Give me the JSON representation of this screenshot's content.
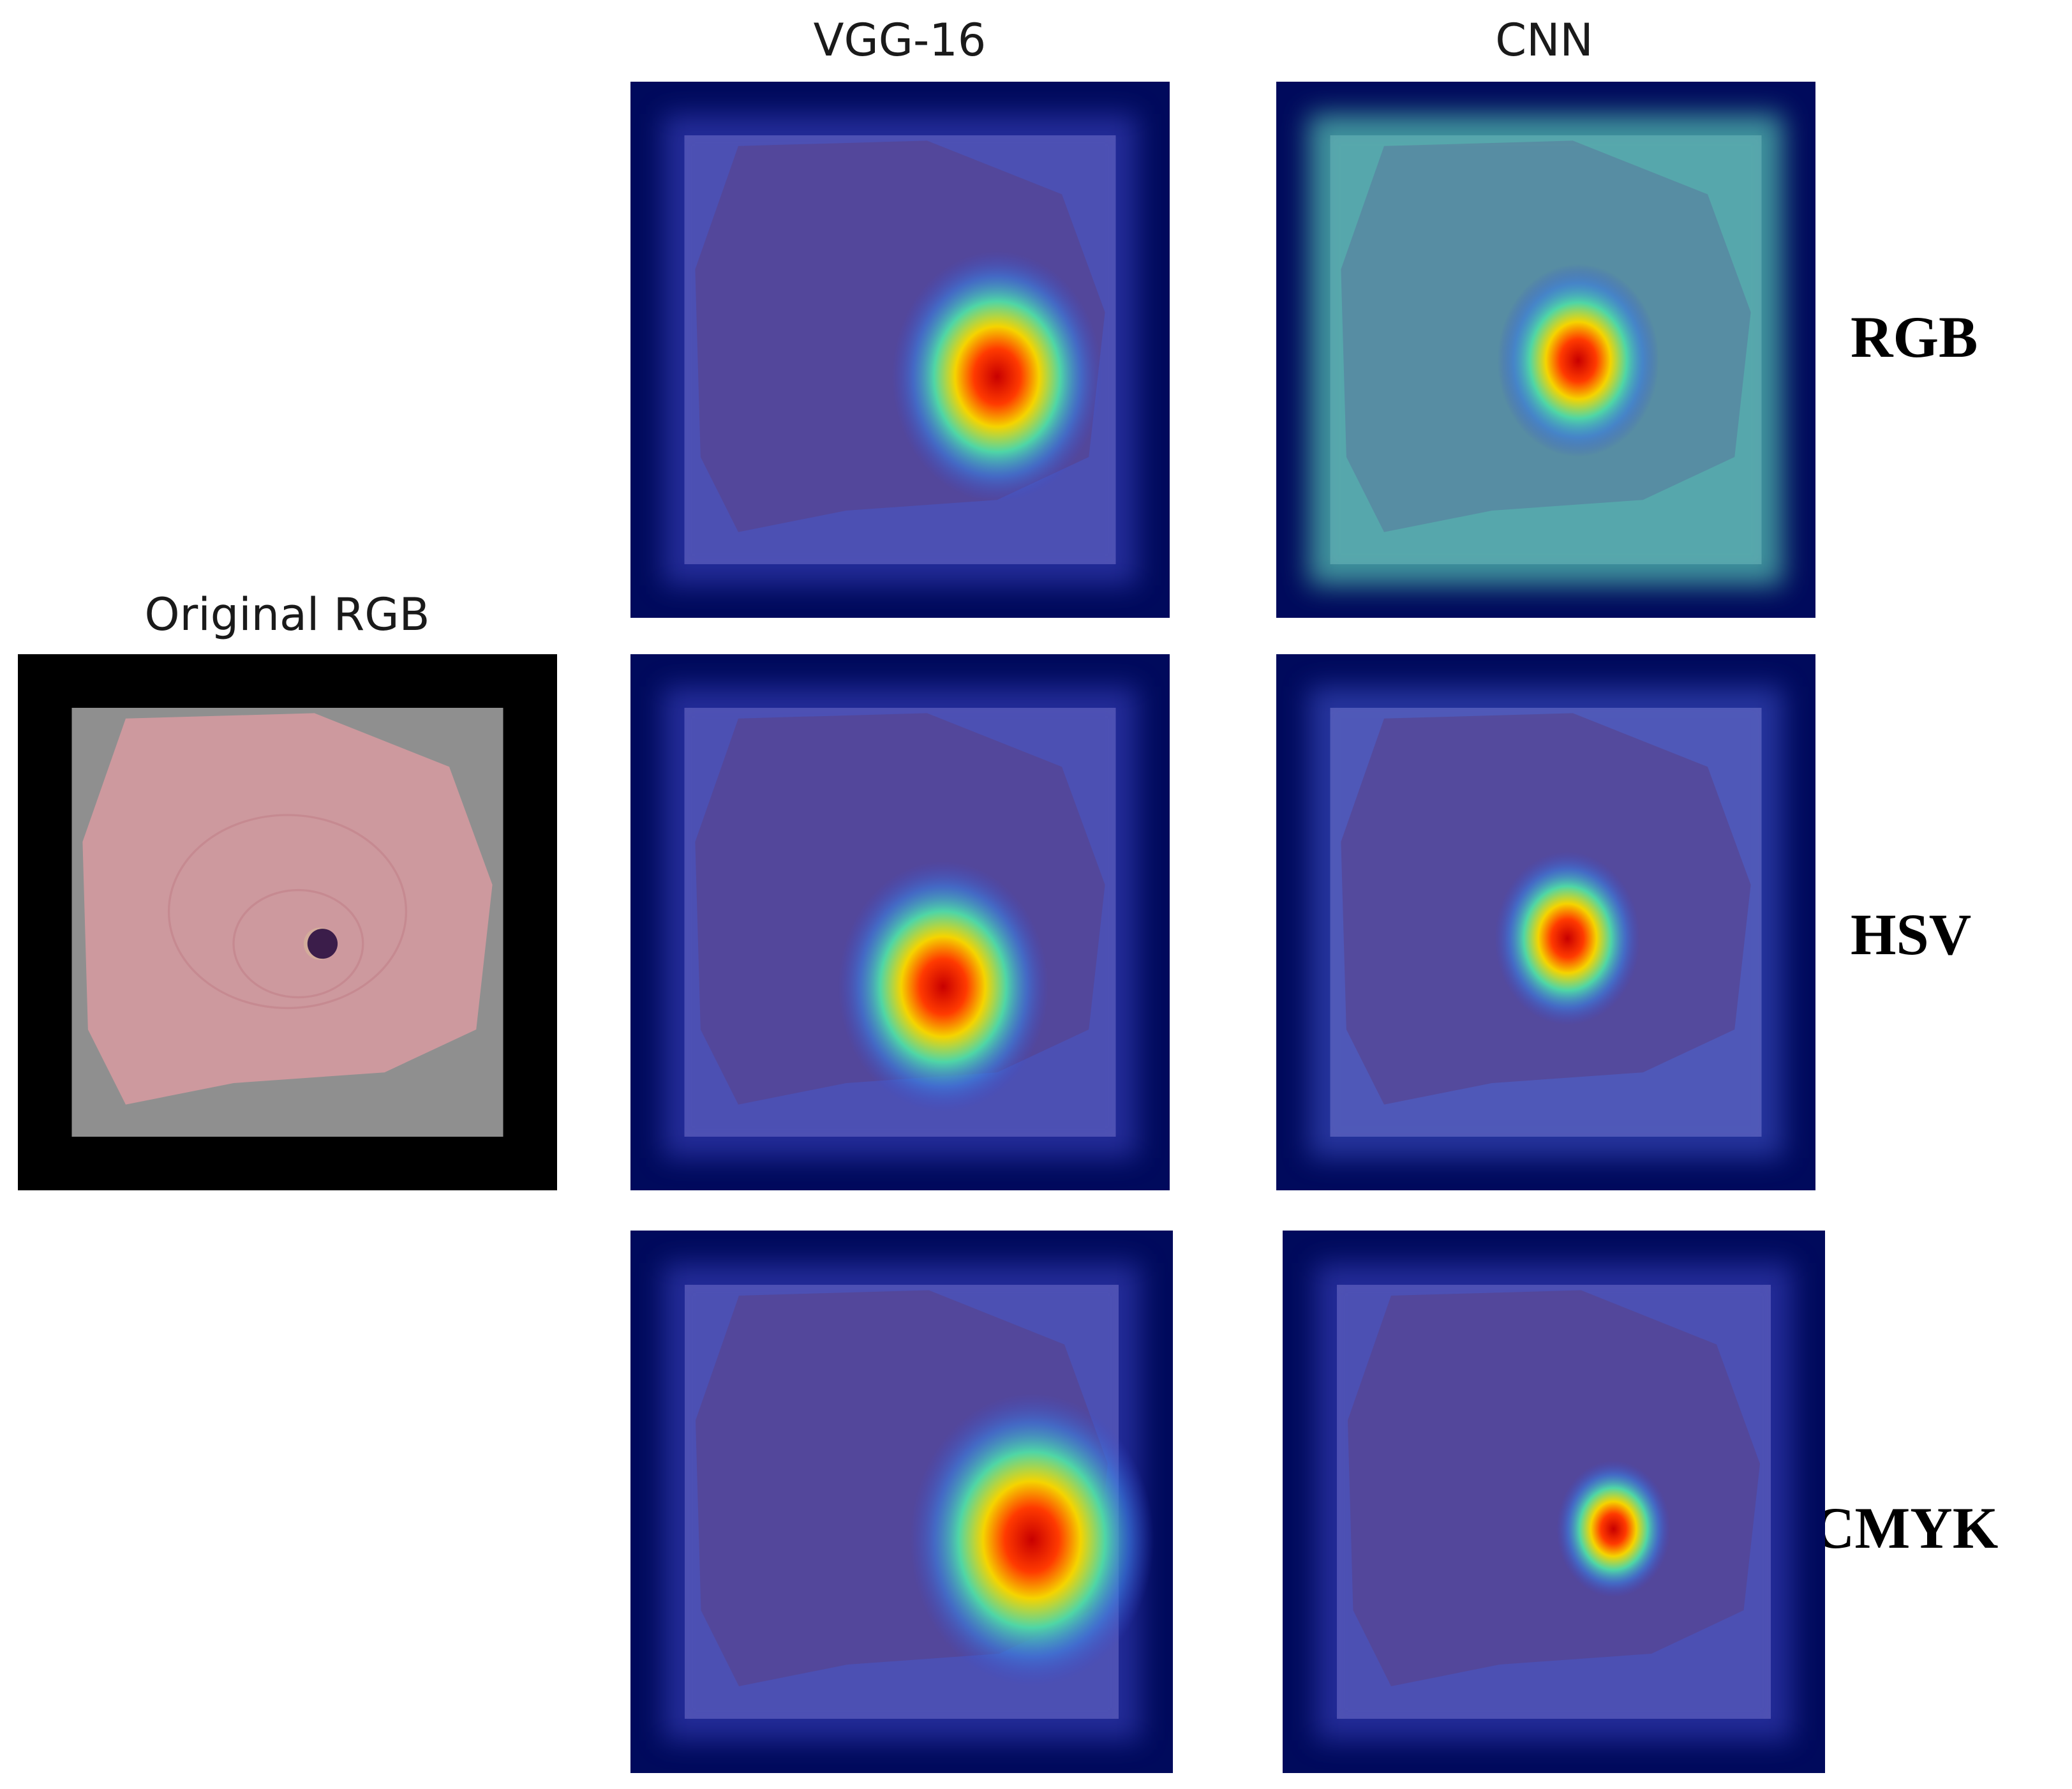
{
  "labels": {
    "original": "Original RGB",
    "vgg": "VGG-16",
    "cnn": "CNN",
    "rgb": "RGB",
    "hsv": "HSV",
    "cmyk": "CMYK"
  },
  "panels": [
    {
      "id": "original-rgb",
      "kind": "original"
    },
    {
      "id": "vgg16-rgb",
      "kind": "heatmap",
      "model": "VGG-16",
      "colorspace": "RGB",
      "hotspot": [
        0.68,
        0.55
      ],
      "extent": 0.26,
      "background": "low"
    },
    {
      "id": "cnn-rgb",
      "kind": "heatmap",
      "model": "CNN",
      "colorspace": "RGB",
      "hotspot": [
        0.56,
        0.52
      ],
      "extent": 0.2,
      "background": "high"
    },
    {
      "id": "vgg16-hsv",
      "kind": "heatmap",
      "model": "VGG-16",
      "colorspace": "HSV",
      "hotspot": [
        0.58,
        0.62
      ],
      "extent": 0.26,
      "background": "low"
    },
    {
      "id": "cnn-hsv",
      "kind": "heatmap",
      "model": "CNN",
      "colorspace": "HSV",
      "hotspot": [
        0.54,
        0.53
      ],
      "extent": 0.18,
      "background": "medium"
    },
    {
      "id": "vgg16-cmyk",
      "kind": "heatmap",
      "model": "VGG-16",
      "colorspace": "CMYK",
      "hotspot": [
        0.74,
        0.57
      ],
      "extent": 0.3,
      "background": "low"
    },
    {
      "id": "cnn-cmyk",
      "kind": "heatmap",
      "model": "CNN",
      "colorspace": "CMYK",
      "hotspot": [
        0.61,
        0.55
      ],
      "extent": 0.14,
      "background": "low"
    }
  ],
  "colors": {
    "frame_dark": "#000a5c",
    "cell_pink": "#d49aa0",
    "nucleus": "#3b1d4a",
    "hot_red": "#d00000",
    "warm_yellow": "#e8e020",
    "mid_cyan": "#3fc4c8"
  }
}
